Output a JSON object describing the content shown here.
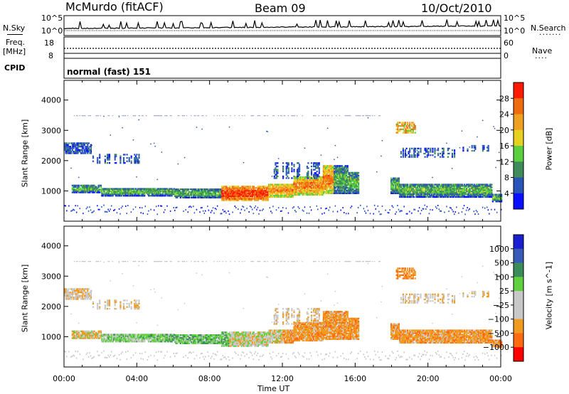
{
  "header": {
    "station": "McMurdo (fitACF)",
    "beam": "Beam 09",
    "date": "10/Oct/2010"
  },
  "noise_panel": {
    "left_label": "N.Sky",
    "right_label": "N.Search",
    "right_dots": ".......",
    "left_ticks": [
      "10^5",
      "10^0"
    ],
    "right_ticks": [
      "10^5",
      "10^0"
    ]
  },
  "freq_panel": {
    "left_label_1": "Freq.",
    "left_label_2": "[MHz]",
    "right_label": "Nave",
    "right_dots": "....",
    "left_ticks": [
      "18",
      "8"
    ],
    "right_ticks": [
      "60",
      "0"
    ]
  },
  "cpid": {
    "label": "CPID",
    "value": "normal (fast) 151"
  },
  "colors": {
    "power": [
      "#0a10ff",
      "#2a55b8",
      "#3f8c5a",
      "#5ad040",
      "#e8d020",
      "#f0a020",
      "#f06a10",
      "#ff1a00"
    ],
    "velocity": [
      "#ff0000",
      "#ff6a10",
      "#f09a20",
      "#c8c8c8",
      "#c8c8c8",
      "#60d040",
      "#3c8c5a",
      "#3a5ab8",
      "#1a20d0"
    ]
  },
  "chart_data": [
    {
      "type": "heatmap",
      "name": "power",
      "ylabel": "Slant Range [km]",
      "yticks": [
        1000,
        2000,
        3000,
        4000
      ],
      "ylim": [
        0,
        4650
      ],
      "xlim": [
        0,
        24
      ],
      "colorbar_label": "Power [dB]",
      "colorbar_ticks": [
        4,
        8,
        12,
        16,
        20,
        24,
        28
      ],
      "colorbar_range": [
        0,
        32
      ]
    },
    {
      "type": "heatmap",
      "name": "velocity",
      "ylabel": "Slant Range [km]",
      "yticks": [
        1000,
        2000,
        3000,
        4000
      ],
      "ylim": [
        0,
        4650
      ],
      "xlim": [
        0,
        24
      ],
      "xticks": [
        "00:00",
        "04:00",
        "08:00",
        "12:00",
        "16:00",
        "20:00",
        "00:00"
      ],
      "xlabel": "Time UT",
      "colorbar_label": "Velocity [m s^-1]",
      "colorbar_ticks": [
        "1000",
        "500",
        "100",
        "25",
        "−25",
        "−100",
        "−500",
        "−1000"
      ]
    }
  ]
}
